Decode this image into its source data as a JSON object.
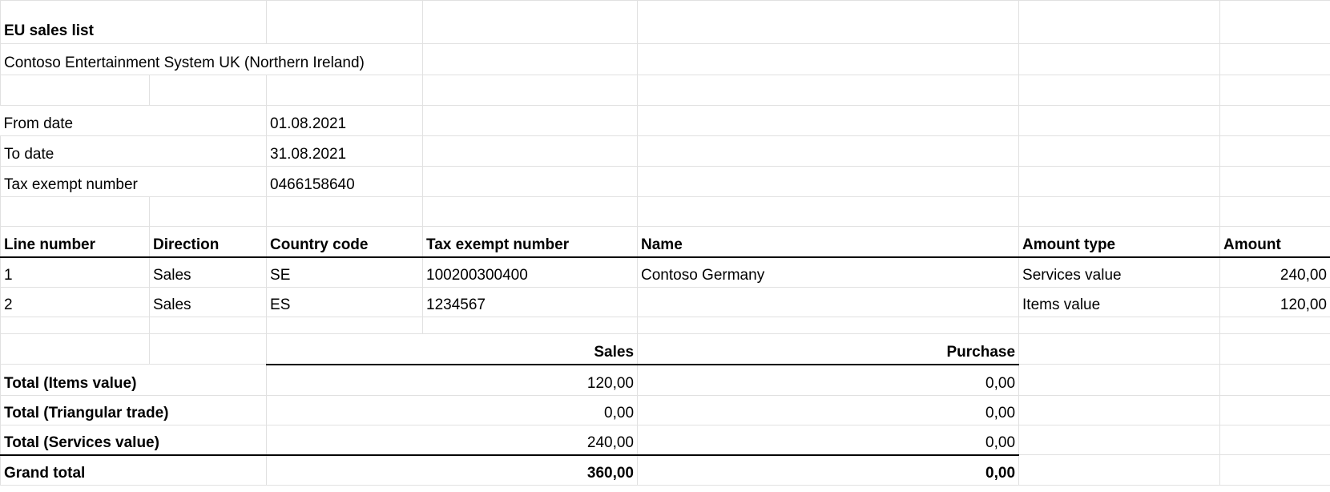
{
  "report": {
    "title": "EU sales list",
    "company": "Contoso Entertainment System UK (Northern Ireland)"
  },
  "params": [
    {
      "label": "From date",
      "value": "01.08.2021"
    },
    {
      "label": "To date",
      "value": "31.08.2021"
    },
    {
      "label": "Tax exempt number",
      "value": "0466158640"
    }
  ],
  "lines": {
    "headers": [
      "Line number",
      "Direction",
      "Country code",
      "Tax exempt number",
      "Name",
      "Amount type",
      "Amount"
    ],
    "rows": [
      [
        "1",
        "Sales",
        "SE",
        "100200300400",
        "Contoso Germany",
        "Services value",
        "240,00"
      ],
      [
        "2",
        "Sales",
        "ES",
        "1234567",
        "",
        "Items value",
        "120,00"
      ]
    ]
  },
  "totals": {
    "col_sales": "Sales",
    "col_purchase": "Purchase",
    "rows": [
      {
        "label": "Total (Items value)",
        "sales": "120,00",
        "purchase": "0,00"
      },
      {
        "label": "Total (Triangular trade)",
        "sales": "0,00",
        "purchase": "0,00"
      },
      {
        "label": "Total (Services value)",
        "sales": "240,00",
        "purchase": "0,00"
      }
    ],
    "grand": {
      "label": "Grand total",
      "sales": "360,00",
      "purchase": "0,00"
    }
  }
}
